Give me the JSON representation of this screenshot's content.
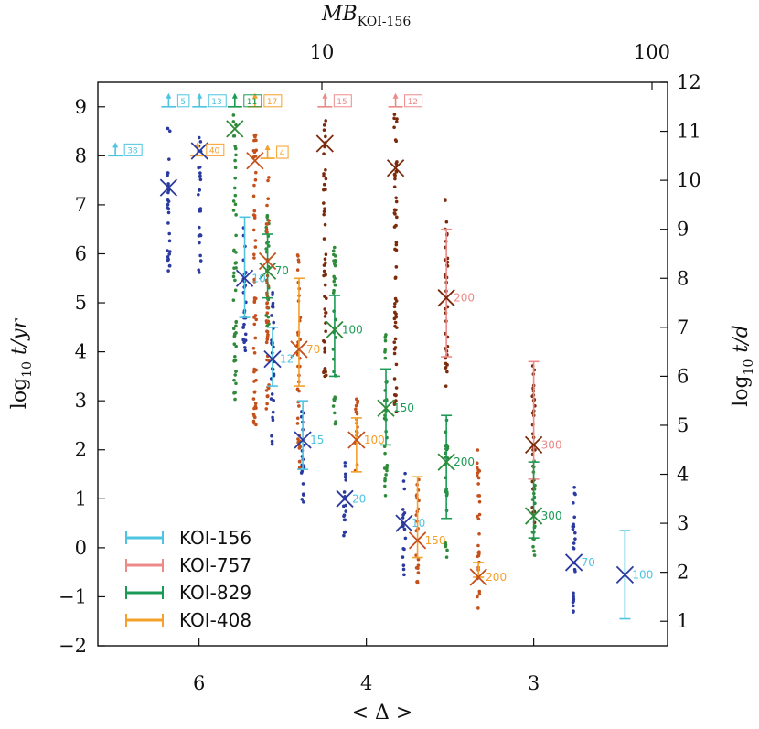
{
  "chart_data": {
    "type": "scatter",
    "x_bottom": {
      "label": "< Δ >",
      "ticks": [
        {
          "value": 6,
          "label": "6"
        },
        {
          "value": 4,
          "label": "4"
        },
        {
          "value": 3,
          "label": "3"
        }
      ],
      "range": [
        8.6,
        2.5
      ],
      "scale": "reciprocal"
    },
    "x_top": {
      "label": "MB",
      "label_sub": "KOI-156",
      "ticks": [
        {
          "value": 10,
          "label": "10"
        },
        {
          "value": 100,
          "label": "100"
        }
      ],
      "scale": "log"
    },
    "y_left": {
      "label": "log",
      "label_sub": "10",
      "label_rest": " t/yr",
      "range": [
        -2,
        9.5
      ],
      "ticks": [
        {
          "value": -2,
          "label": "−2"
        },
        {
          "value": -1,
          "label": "−1"
        },
        {
          "value": 0,
          "label": "0"
        },
        {
          "value": 1,
          "label": "1"
        },
        {
          "value": 2,
          "label": "2"
        },
        {
          "value": 3,
          "label": "3"
        },
        {
          "value": 4,
          "label": "4"
        },
        {
          "value": 5,
          "label": "5"
        },
        {
          "value": 6,
          "label": "6"
        },
        {
          "value": 7,
          "label": "7"
        },
        {
          "value": 8,
          "label": "8"
        },
        {
          "value": 9,
          "label": "9"
        }
      ]
    },
    "y_right": {
      "label": "log",
      "label_sub": "10",
      "label_rest": " t/d",
      "ticks": [
        {
          "value": 1,
          "label": "1"
        },
        {
          "value": 2,
          "label": "2"
        },
        {
          "value": 3,
          "label": "3"
        },
        {
          "value": 4,
          "label": "4"
        },
        {
          "value": 5,
          "label": "5"
        },
        {
          "value": 6,
          "label": "6"
        },
        {
          "value": 7,
          "label": "7"
        },
        {
          "value": 8,
          "label": "8"
        },
        {
          "value": 9,
          "label": "9"
        },
        {
          "value": 10,
          "label": "10"
        },
        {
          "value": 11,
          "label": "11"
        },
        {
          "value": 12,
          "label": "12"
        }
      ]
    },
    "legend": {
      "placement": "bottom-left",
      "entries": [
        {
          "name": "KOI-156",
          "color": "#4ec4e0"
        },
        {
          "name": "KOI-757",
          "color": "#ec8a88"
        },
        {
          "name": "KOI-829",
          "color": "#1b9a55"
        },
        {
          "name": "KOI-408",
          "color": "#f5a02a"
        }
      ]
    },
    "colors": {
      "KOI-156": {
        "line": "#4ec4e0",
        "dots": "#2b3a9e",
        "marker": "#2b3a9e"
      },
      "KOI-757": {
        "line": "#ec8a88",
        "dots": "#7b2a0c",
        "marker": "#7b2a0c"
      },
      "KOI-829": {
        "line": "#1b9a55",
        "dots": "#2f8a3a",
        "marker": "#2f8a3a"
      },
      "KOI-408": {
        "line": "#f5a02a",
        "dots": "#c4501c",
        "marker": "#c4501c"
      }
    },
    "series": [
      {
        "name": "KOI-156",
        "points": [
          {
            "x": 8.0,
            "y": null,
            "lower_limit": 8.0,
            "label": "38"
          },
          {
            "x": 6.6,
            "y": 7.35,
            "lower_limit": 9.0,
            "label": "5",
            "dots": [
              5.5,
              8.7
            ]
          },
          {
            "x": 5.99,
            "y": 8.1,
            "lower_limit": 9.0,
            "label": "13",
            "dots": [
              5.6,
              8.5
            ]
          },
          {
            "x": 5.28,
            "y": 5.5,
            "ymin": 4.7,
            "ymax": 6.75,
            "label": "10",
            "dots": [
              4.0,
              7.0
            ]
          },
          {
            "x": 4.92,
            "y": 3.85,
            "ymin": 3.3,
            "ymax": 4.5,
            "label": "12",
            "dots": [
              2.0,
              5.3
            ]
          },
          {
            "x": 4.58,
            "y": 2.2,
            "ymin": 1.6,
            "ymax": 3.0,
            "label": "15",
            "dots": [
              0.8,
              3.0
            ]
          },
          {
            "x": 4.18,
            "y": 1.0,
            "label": "20",
            "dots": [
              0.1,
              1.8
            ]
          },
          {
            "x": 3.72,
            "y": 0.5,
            "label": "10",
            "dots": [
              -0.55,
              1.6
            ]
          },
          {
            "x": 2.83,
            "y": -0.3,
            "label": "70",
            "dots": [
              -1.35,
              1.55
            ]
          },
          {
            "x": 2.64,
            "y": -0.55,
            "ymin": -1.45,
            "ymax": 0.35,
            "label": "100"
          }
        ]
      },
      {
        "name": "KOI-757",
        "points": [
          {
            "x": 4.36,
            "y": 8.25,
            "lower_limit": 9.0,
            "label": "15",
            "dots": [
              3.5,
              8.9
            ]
          },
          {
            "x": 3.78,
            "y": 7.75,
            "lower_limit": 9.0,
            "label": "12",
            "dots": [
              2.5,
              8.9
            ]
          },
          {
            "x": 3.45,
            "y": 5.1,
            "ymin": 3.9,
            "ymax": 6.5,
            "label": "200",
            "dots": [
              3.2,
              7.2
            ]
          },
          {
            "x": 3.0,
            "y": 2.1,
            "ymin": 1.4,
            "ymax": 3.8,
            "label": "300",
            "dots": [
              0.4,
              3.8
            ]
          }
        ]
      },
      {
        "name": "KOI-829",
        "points": [
          {
            "x": 5.42,
            "y": 8.55,
            "lower_limit": 9.0,
            "label": "11",
            "dots": [
              3.0,
              8.9
            ]
          },
          {
            "x": 4.98,
            "y": 5.65,
            "ymin": 5.1,
            "ymax": 6.4,
            "label": "70",
            "dots": [
              4.5,
              6.8
            ]
          },
          {
            "x": 4.27,
            "y": 4.45,
            "ymin": 3.5,
            "ymax": 5.15,
            "label": "100",
            "dots": [
              2.5,
              6.2
            ]
          },
          {
            "x": 3.85,
            "y": 2.85,
            "ymin": 2.1,
            "ymax": 3.65,
            "label": "150",
            "dots": [
              1.0,
              4.4
            ]
          },
          {
            "x": 3.45,
            "y": 1.75,
            "ymin": 0.6,
            "ymax": 2.7,
            "label": "200",
            "dots": [
              -0.3,
              2.7
            ]
          },
          {
            "x": 3.0,
            "y": 0.65,
            "ymin": 0.2,
            "ymax": 1.75,
            "label": "300",
            "dots": [
              -0.2,
              1.8
            ]
          }
        ]
      },
      {
        "name": "KOI-408",
        "points": [
          {
            "x": 6.03,
            "y": null,
            "lower_limit": 8.0,
            "label": "40"
          },
          {
            "x": 5.14,
            "y": 7.9,
            "lower_limit": 9.0,
            "label": "17",
            "dots": [
              2.5,
              8.5
            ]
          },
          {
            "x": 4.98,
            "y": 5.85,
            "lower_limit": 7.95,
            "label": "4",
            "dots": [
              2.5,
              7.6
            ]
          },
          {
            "x": 4.62,
            "y": 4.05,
            "ymin": 3.3,
            "ymax": 5.5,
            "label": "70",
            "dots": [
              1.5,
              6.0
            ]
          },
          {
            "x": 4.08,
            "y": 2.2,
            "ymin": 1.55,
            "ymax": 2.65,
            "label": "100",
            "dots": [
              1.5,
              3.1
            ]
          },
          {
            "x": 3.63,
            "y": 0.15,
            "ymin": -0.2,
            "ymax": 1.45,
            "label": "150",
            "dots": [
              -0.8,
              1.6
            ]
          },
          {
            "x": 3.27,
            "y": -0.6,
            "ymin": -0.6,
            "ymax": -0.3,
            "label": "200",
            "dots": [
              -1.3,
              2.0
            ]
          }
        ]
      }
    ]
  }
}
